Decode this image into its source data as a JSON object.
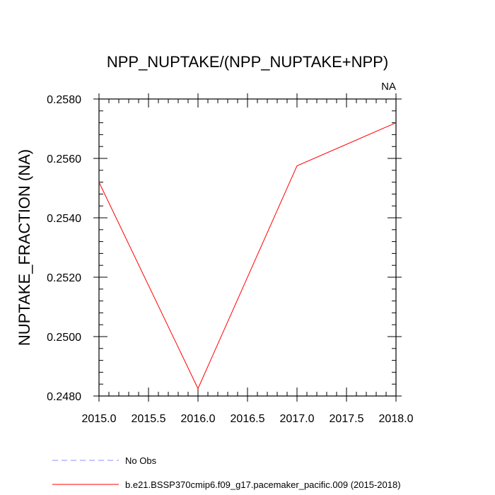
{
  "chart_data": {
    "type": "line",
    "title": "NPP_NUPTAKE/(NPP_NUPTAKE+NPP)",
    "subtitle_right": "NA",
    "ylabel": "NUPTAKE_FRACTION  (NA)",
    "xlabel": "",
    "xlim": [
      2015.0,
      2018.0
    ],
    "ylim": [
      0.248,
      0.258
    ],
    "x_ticks": [
      2015.0,
      2015.5,
      2016.0,
      2016.5,
      2017.0,
      2017.5,
      2018.0
    ],
    "x_tick_labels": [
      "2015.0",
      "2015.5",
      "2016.0",
      "2016.5",
      "2017.0",
      "2017.5",
      "2018.0"
    ],
    "y_ticks": [
      0.248,
      0.25,
      0.252,
      0.254,
      0.256,
      0.258
    ],
    "y_tick_labels": [
      "0.2480",
      "0.2500",
      "0.2520",
      "0.2540",
      "0.2560",
      "0.2580"
    ],
    "grid": false,
    "legend_position": "bottom",
    "series": [
      {
        "name": "No Obs",
        "color": "#8c8cff",
        "style": "dashed",
        "x": [],
        "y": []
      },
      {
        "name": "b.e21.BSSP370cmip6.f09_g17.pacemaker_pacific.009 (2015-2018)",
        "color": "#ff0000",
        "style": "solid",
        "x": [
          2015.0,
          2016.0,
          2017.0,
          2018.0
        ],
        "y": [
          0.2552,
          0.24825,
          0.25575,
          0.2572
        ]
      }
    ]
  }
}
